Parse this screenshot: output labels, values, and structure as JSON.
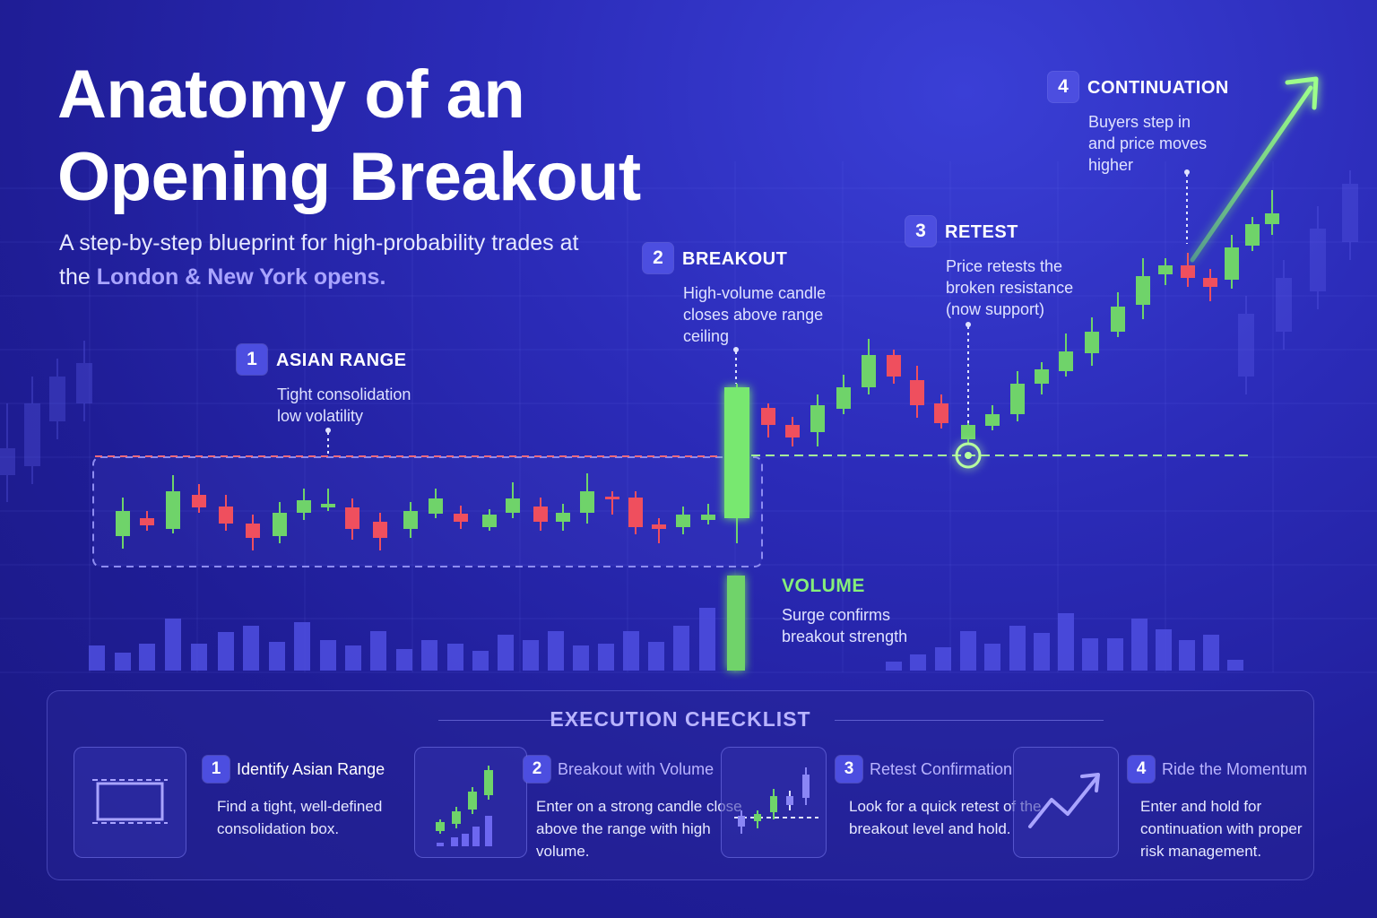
{
  "header": {
    "title_line1": "Anatomy of an",
    "title_line2": "Opening Breakout",
    "subtitle_part1": "A step-by-step blueprint for high-probability trades at the ",
    "subtitle_highlight": "London & New York opens."
  },
  "steps": [
    {
      "num": "1",
      "title": "ASIAN RANGE",
      "desc1": "Tight consolidation",
      "desc2": "low volatility",
      "desc3": ""
    },
    {
      "num": "2",
      "title": "BREAKOUT",
      "desc1": "High-volume candle",
      "desc2": "closes above range",
      "desc3": "ceiling"
    },
    {
      "num": "3",
      "title": "RETEST",
      "desc1": "Price retests the",
      "desc2": "broken resistance",
      "desc3": "(now support)"
    },
    {
      "num": "4",
      "title": "CONTINUATION",
      "desc1": "Buyers step in",
      "desc2": "and price moves",
      "desc3": "higher"
    }
  ],
  "volume_note": {
    "title": "VOLUME",
    "desc1": "Surge confirms",
    "desc2": "breakout strength"
  },
  "checklist": {
    "title": "EXECUTION CHECKLIST",
    "items": [
      {
        "num": "1",
        "title": "Identify Asian Range",
        "desc": "Find a tight, well-defined consolidation box.",
        "icon": "range-box-icon"
      },
      {
        "num": "2",
        "title": "Breakout with Volume",
        "desc": "Enter on a strong candle close above the range with high volume.",
        "icon": "candles-volume-icon"
      },
      {
        "num": "3",
        "title": "Retest Confirmation",
        "desc": "Look for a quick retest of the breakout level and hold.",
        "icon": "retest-candles-icon"
      },
      {
        "num": "4",
        "title": "Ride the Momentum",
        "desc": "Enter and hold for continuation with proper risk management.",
        "icon": "trend-up-arrow-icon"
      }
    ]
  },
  "colors": {
    "bull": "#6fd36a",
    "bear": "#ef4f5e",
    "accent": "#a9a4ff",
    "arrow": "#8cff7a"
  }
}
